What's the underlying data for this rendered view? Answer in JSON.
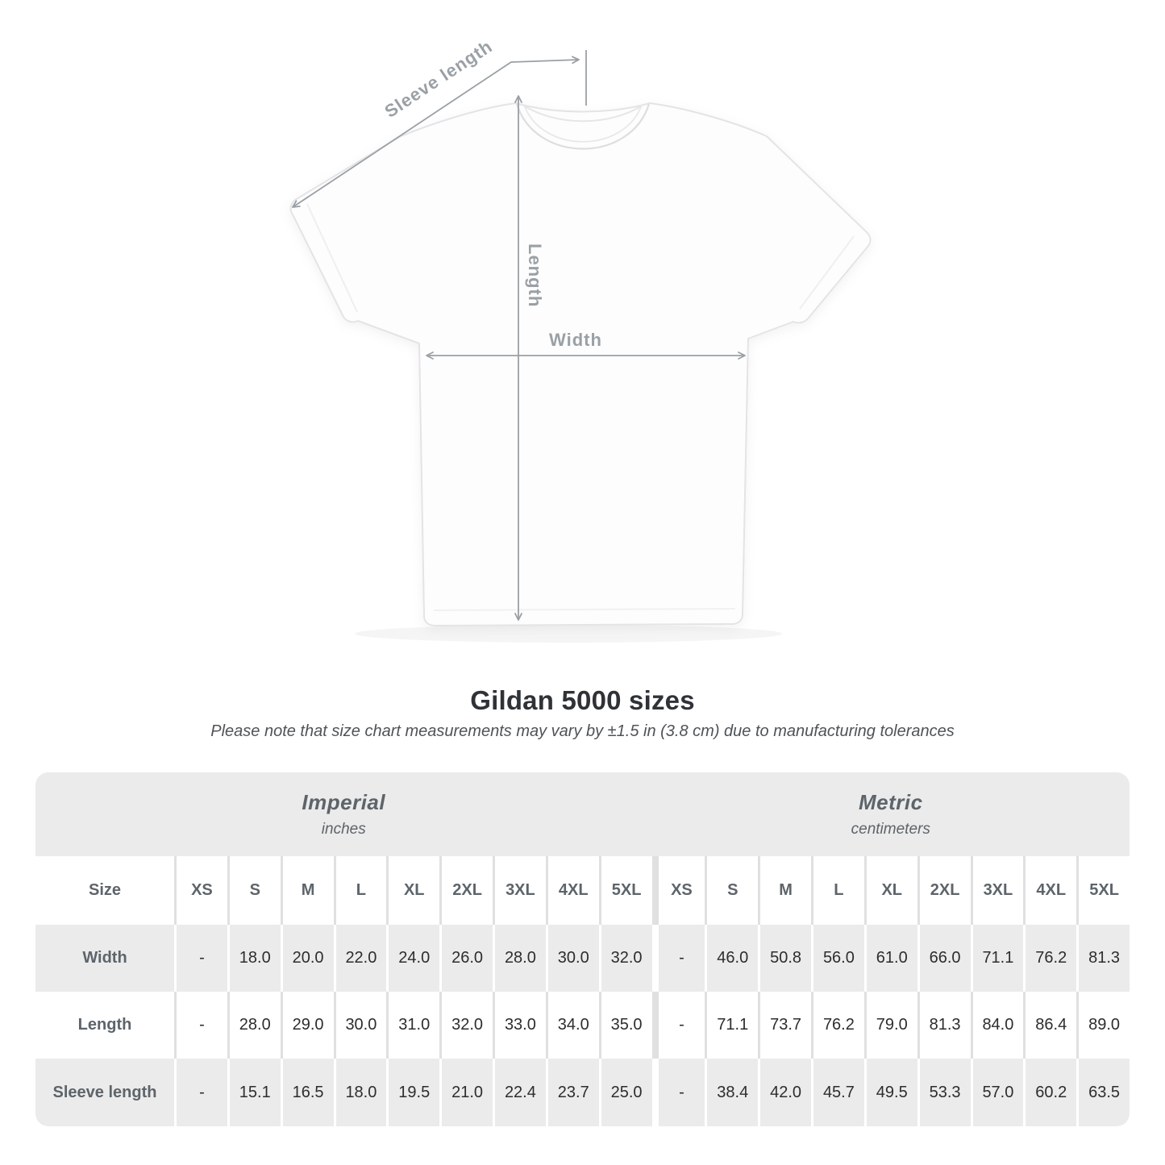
{
  "heading": {
    "title": "Gildan 5000 sizes",
    "subtitle": "Please note that size chart measurements may vary by ±1.5 in (3.8 cm) due to manufacturing tolerances"
  },
  "diagram": {
    "sleeve_label": "Sleeve length",
    "length_label": "Length",
    "width_label": "Width",
    "annotation_color": "#9aa0a5"
  },
  "chart_data": {
    "type": "table",
    "title": "Gildan 5000 sizes",
    "corner_header": "Size",
    "sections": [
      {
        "name": "Imperial",
        "unit": "inches"
      },
      {
        "name": "Metric",
        "unit": "centimeters"
      }
    ],
    "size_labels": [
      "XS",
      "S",
      "M",
      "L",
      "XL",
      "2XL",
      "3XL",
      "4XL",
      "5XL"
    ],
    "rows": [
      {
        "label": "Width",
        "imperial": [
          "-",
          "18.0",
          "20.0",
          "22.0",
          "24.0",
          "26.0",
          "28.0",
          "30.0",
          "32.0"
        ],
        "metric": [
          "-",
          "46.0",
          "50.8",
          "56.0",
          "61.0",
          "66.0",
          "71.1",
          "76.2",
          "81.3"
        ]
      },
      {
        "label": "Length",
        "imperial": [
          "-",
          "28.0",
          "29.0",
          "30.0",
          "31.0",
          "32.0",
          "33.0",
          "34.0",
          "35.0"
        ],
        "metric": [
          "-",
          "71.1",
          "73.7",
          "76.2",
          "79.0",
          "81.3",
          "84.0",
          "86.4",
          "89.0"
        ]
      },
      {
        "label": "Sleeve length",
        "imperial": [
          "-",
          "15.1",
          "16.5",
          "18.0",
          "19.5",
          "21.0",
          "22.4",
          "23.7",
          "25.0"
        ],
        "metric": [
          "-",
          "38.4",
          "42.0",
          "45.7",
          "49.5",
          "53.3",
          "57.0",
          "60.2",
          "63.5"
        ]
      }
    ],
    "stripe_color": "#ebebeb"
  }
}
